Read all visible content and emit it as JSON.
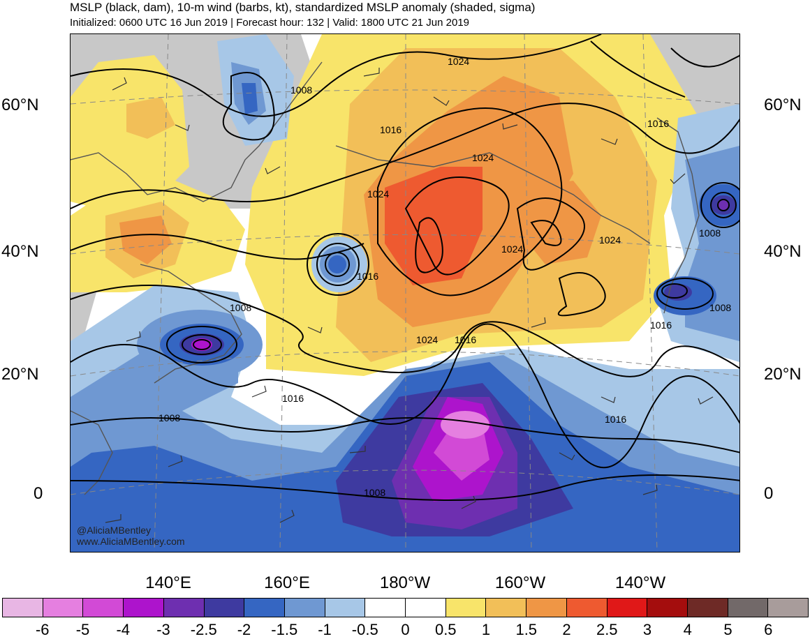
{
  "header": {
    "title": "MSLP (black, dam), 10-m wind (barbs, kt), standardized MSLP anomaly (shaded, sigma)",
    "subtitle": "Initialized: 0600 UTC 16 Jun 2019 | Forecast hour: 132 | Valid: 1800 UTC 21 Jun 2019"
  },
  "map": {
    "lat_labels": [
      "60°N",
      "40°N",
      "20°N",
      "0"
    ],
    "lon_labels": [
      "140°E",
      "160°E",
      "180°W",
      "160°W",
      "140°W"
    ],
    "contour_labels": [
      "1024",
      "1008",
      "1016",
      "1024",
      "1024",
      "1024",
      "1024",
      "1016",
      "1016",
      "1008",
      "1024",
      "1016",
      "1016",
      "1016",
      "1008",
      "1008",
      "1016",
      "1008",
      "1008"
    ],
    "credit": [
      "@AliciaMBentley",
      "www.AliciaMBentley.com"
    ]
  },
  "colorbar": {
    "labels": [
      "-6",
      "-5",
      "-4",
      "-3",
      "-2.5",
      "-2",
      "-1.5",
      "-1",
      "-0.5",
      "0",
      "0.5",
      "1",
      "1.5",
      "2",
      "2.5",
      "3",
      "4",
      "5",
      "6"
    ],
    "colors": [
      "#e8b6e4",
      "#e57fe0",
      "#d24ad6",
      "#ad14cc",
      "#6e2fb0",
      "#3e3aa0",
      "#3566c2",
      "#6f98d2",
      "#a7c7e7",
      "#ffffff",
      "#ffffff",
      "#f8e46a",
      "#f2bf58",
      "#ef9645",
      "#ee5a30",
      "#e01818",
      "#a40d0d",
      "#6e2a26",
      "#726969",
      "#a89c9b"
    ]
  }
}
